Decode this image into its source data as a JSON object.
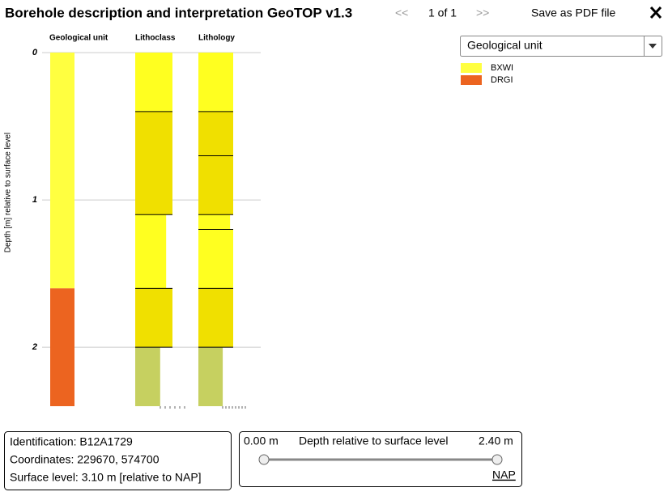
{
  "header": {
    "title": "Borehole description and interpretation GeoTOP v1.3",
    "prev": "<<",
    "page": "1 of 1",
    "next": ">>",
    "save": "Save as PDF file"
  },
  "chart_data": {
    "type": "borehole",
    "ylabel": "Depth [m] relative to surface level",
    "ylim": [
      0,
      2.4
    ],
    "yticks": [
      0,
      1,
      2
    ],
    "grid": true,
    "columns": [
      {
        "name": "Geological unit",
        "segments": [
          {
            "top": 0,
            "bottom": 1.6,
            "color": "#ffff40"
          },
          {
            "top": 1.6,
            "bottom": 2.4,
            "color": "#ec6420"
          }
        ]
      },
      {
        "name": "Lithoclass",
        "segments": [
          {
            "top": 0,
            "bottom": 0.4,
            "color": "#ffff20"
          },
          {
            "top": 0.4,
            "bottom": 1.1,
            "color": "#f0e000"
          },
          {
            "top": 1.1,
            "bottom": 1.6,
            "color": "#ffff20"
          },
          {
            "top": 1.6,
            "bottom": 2.0,
            "color": "#f0e000"
          },
          {
            "top": 2.0,
            "bottom": 2.4,
            "color": "#c6d060"
          }
        ]
      },
      {
        "name": "Lithology",
        "segments": [
          {
            "top": 0,
            "bottom": 0.4,
            "color": "#ffff20"
          },
          {
            "top": 0.4,
            "bottom": 0.7,
            "color": "#f0e000"
          },
          {
            "top": 0.7,
            "bottom": 1.1,
            "color": "#f0e000"
          },
          {
            "top": 1.1,
            "bottom": 1.2,
            "color": "#ffff20"
          },
          {
            "top": 1.2,
            "bottom": 1.6,
            "color": "#ffff20"
          },
          {
            "top": 1.6,
            "bottom": 2.0,
            "color": "#f0e000"
          },
          {
            "top": 2.0,
            "bottom": 2.4,
            "color": "#c6d060"
          }
        ]
      }
    ]
  },
  "legend": {
    "selector": "Geological unit",
    "items": [
      {
        "label": "BXWI",
        "color": "#ffff40"
      },
      {
        "label": "DRGI",
        "color": "#ec6420"
      }
    ]
  },
  "info": {
    "identification": "Identification: B12A1729",
    "coordinates": "Coordinates: 229670, 574700",
    "surface": "Surface level: 3.10 m [relative to NAP]"
  },
  "slider": {
    "min_label": "0.00 m",
    "title": "Depth relative to surface level",
    "max_label": "2.40 m",
    "link": "NAP"
  }
}
